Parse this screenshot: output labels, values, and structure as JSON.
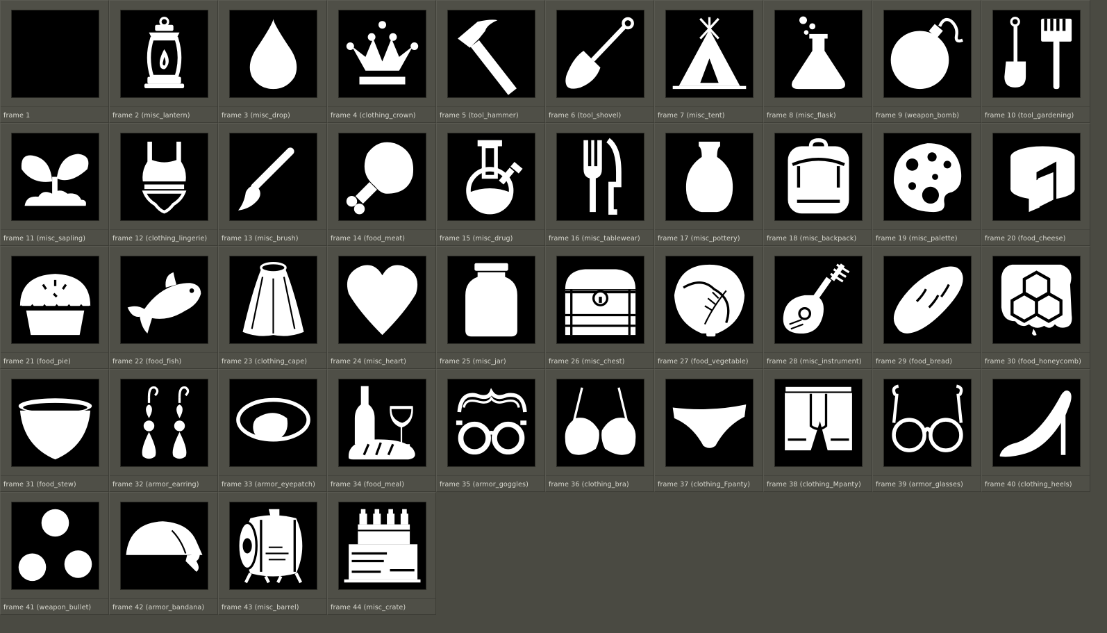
{
  "frames": [
    {
      "label": "frame 1",
      "icon": "blank"
    },
    {
      "label": "frame 2 (misc_lantern)",
      "icon": "lantern"
    },
    {
      "label": "frame 3 (misc_drop)",
      "icon": "drop"
    },
    {
      "label": "frame 4 (clothing_crown)",
      "icon": "crown"
    },
    {
      "label": "frame 5 (tool_hammer)",
      "icon": "hammer"
    },
    {
      "label": "frame 6 (tool_shovel)",
      "icon": "shovel"
    },
    {
      "label": "frame 7 (misc_tent)",
      "icon": "tent"
    },
    {
      "label": "frame 8 (misc_flask)",
      "icon": "flask"
    },
    {
      "label": "frame 9 (weapon_bomb)",
      "icon": "bomb"
    },
    {
      "label": "frame 10 (tool_gardening)",
      "icon": "gardening"
    },
    {
      "label": "frame 11 (misc_sapling)",
      "icon": "sapling"
    },
    {
      "label": "frame 12 (clothing_lingerie)",
      "icon": "lingerie"
    },
    {
      "label": "frame 13 (misc_brush)",
      "icon": "brush"
    },
    {
      "label": "frame 14 (food_meat)",
      "icon": "meat"
    },
    {
      "label": "frame 15 (misc_drug)",
      "icon": "drug"
    },
    {
      "label": "frame 16 (misc_tablewear)",
      "icon": "tablewear"
    },
    {
      "label": "frame 17 (misc_pottery)",
      "icon": "pottery"
    },
    {
      "label": "frame 18 (misc_backpack)",
      "icon": "backpack"
    },
    {
      "label": "frame 19 (misc_palette)",
      "icon": "palette"
    },
    {
      "label": "frame 20 (food_cheese)",
      "icon": "cheese"
    },
    {
      "label": "frame 21 (food_pie)",
      "icon": "pie"
    },
    {
      "label": "frame 22 (food_fish)",
      "icon": "fish"
    },
    {
      "label": "frame 23 (clothing_cape)",
      "icon": "cape"
    },
    {
      "label": "frame 24 (misc_heart)",
      "icon": "heart"
    },
    {
      "label": "frame 25 (misc_jar)",
      "icon": "jar"
    },
    {
      "label": "frame 26 (misc_chest)",
      "icon": "chest"
    },
    {
      "label": "frame 27 (food_vegetable)",
      "icon": "vegetable"
    },
    {
      "label": "frame 28 (misc_instrument)",
      "icon": "instrument"
    },
    {
      "label": "frame 29 (food_bread)",
      "icon": "bread"
    },
    {
      "label": "frame 30 (food_honeycomb)",
      "icon": "honeycomb"
    },
    {
      "label": "frame 31 (food_stew)",
      "icon": "stew"
    },
    {
      "label": "frame 32 (armor_earring)",
      "icon": "earring"
    },
    {
      "label": "frame 33 (armor_eyepatch)",
      "icon": "eyepatch"
    },
    {
      "label": "frame 34 (food_meal)",
      "icon": "meal"
    },
    {
      "label": "frame 35 (armor_goggles)",
      "icon": "goggles"
    },
    {
      "label": "frame 36 (clothing_bra)",
      "icon": "bra"
    },
    {
      "label": "frame 37 (clothing_Fpanty)",
      "icon": "fpanty"
    },
    {
      "label": "frame 38 (clothing_Mpanty)",
      "icon": "mpanty"
    },
    {
      "label": "frame 39 (armor_glasses)",
      "icon": "glasses"
    },
    {
      "label": "frame 40 (clothing_heels)",
      "icon": "heels"
    },
    {
      "label": "frame 41 (weapon_bullet)",
      "icon": "bullet"
    },
    {
      "label": "frame 42 (armor_bandana)",
      "icon": "bandana"
    },
    {
      "label": "frame 43 (misc_barrel)",
      "icon": "barrel"
    },
    {
      "label": "frame 44 (misc_crate)",
      "icon": "crate"
    }
  ],
  "colors": {
    "background": "#4a4a42",
    "tile": "#000000",
    "glyph": "#ffffff",
    "label": "#d8d8cf"
  }
}
